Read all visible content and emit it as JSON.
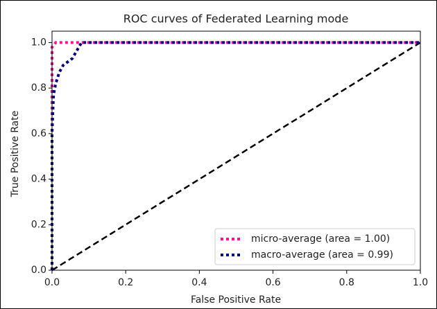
{
  "chart_data": {
    "type": "line",
    "title": "ROC curves of Federated Learning mode",
    "xlabel": "False Positive Rate",
    "ylabel": "True Positive Rate",
    "series": [
      {
        "name": "micro-average (area = 1.00)",
        "color": "#ff1493",
        "x": [
          0,
          0,
          0.01,
          1
        ],
        "values": [
          0,
          0.98,
          1,
          1
        ]
      },
      {
        "name": "macro-average (area = 0.99)",
        "color": "#000080",
        "x": [
          0,
          0,
          0.004,
          0.01,
          0.02,
          0.03,
          0.055,
          0.08,
          1
        ],
        "values": [
          0,
          0.6,
          0.77,
          0.82,
          0.87,
          0.9,
          0.93,
          1,
          1
        ]
      }
    ],
    "xlim": [
      0,
      1
    ],
    "ylim": [
      0,
      1.05
    ],
    "xticks": [
      {
        "value": 0,
        "label": "0.0"
      },
      0.2,
      0.4,
      0.6,
      0.8,
      {
        "value": 1,
        "label": "1.0"
      }
    ],
    "yticks": [
      {
        "value": 0,
        "label": "0.0"
      },
      0.2,
      0.4,
      0.6,
      0.8,
      {
        "value": 1,
        "label": "1.0"
      }
    ],
    "legend": "lower right",
    "grid": false
  }
}
